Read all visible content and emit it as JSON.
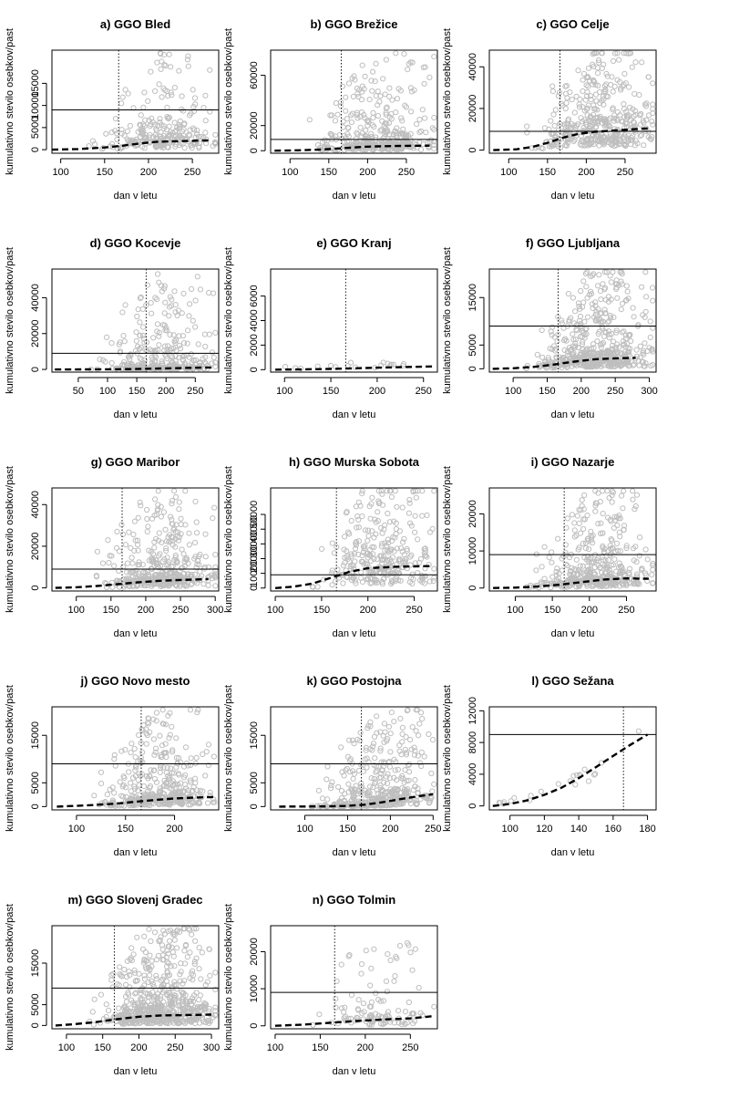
{
  "chart_data": [
    {
      "type": "scatter",
      "title": "a) GGO Bled",
      "xlabel": "dan v letu",
      "ylabel": "kumulativno stevilo osebkov/past",
      "xlim": [
        90,
        280
      ],
      "ylim": [
        -800,
        22500
      ],
      "xticks": [
        100,
        150,
        200,
        250
      ],
      "yticks": [
        0,
        5000,
        10000,
        15000
      ],
      "threshold_y": 9000,
      "vline_x": 166,
      "seed": 11,
      "n_points": 260,
      "point_color": "#bebebe",
      "trend": {
        "x": [
          90,
          120,
          150,
          170,
          190,
          210,
          230,
          250,
          270
        ],
        "y": [
          0,
          150,
          500,
          900,
          1400,
          1800,
          1900,
          2000,
          2100
        ]
      }
    },
    {
      "type": "scatter",
      "title": "b) GGO Brežice",
      "xlabel": "dan v letu",
      "ylabel": "kumulativno stevilo osebkov/past",
      "xlim": [
        75,
        290
      ],
      "ylim": [
        -2000,
        80000
      ],
      "xticks": [
        100,
        150,
        200,
        250
      ],
      "yticks": [
        0,
        20000,
        60000
      ],
      "threshold_y": 9000,
      "vline_x": 166,
      "seed": 22,
      "n_points": 380,
      "point_color": "#bebebe",
      "trend": {
        "x": [
          80,
          110,
          140,
          160,
          180,
          200,
          220,
          250,
          280
        ],
        "y": [
          0,
          300,
          900,
          1700,
          2500,
          3200,
          3600,
          3900,
          4000
        ]
      }
    },
    {
      "type": "scatter",
      "title": "c) GGO Celje",
      "xlabel": "dan v letu",
      "ylabel": "kumulativno stevilo osebkov/past",
      "xlim": [
        75,
        290
      ],
      "ylim": [
        -1500,
        48000
      ],
      "xticks": [
        100,
        150,
        200,
        250
      ],
      "yticks": [
        0,
        20000,
        40000
      ],
      "threshold_y": 9000,
      "vline_x": 166,
      "seed": 33,
      "n_points": 420,
      "point_color": "#bebebe",
      "trend": {
        "x": [
          80,
          110,
          130,
          150,
          170,
          190,
          210,
          240,
          280
        ],
        "y": [
          0,
          400,
          1500,
          3500,
          6000,
          7800,
          8800,
          9500,
          10500
        ]
      }
    },
    {
      "type": "scatter",
      "title": "d) GGO Kocevje",
      "xlabel": "dan v letu",
      "ylabel": "kumulativno stevilo osebkov/past",
      "xlim": [
        5,
        290
      ],
      "ylim": [
        -1500,
        56000
      ],
      "xticks": [
        50,
        100,
        150,
        200,
        250
      ],
      "yticks": [
        0,
        20000,
        40000
      ],
      "threshold_y": 9000,
      "vline_x": 166,
      "seed": 44,
      "n_points": 320,
      "point_color": "#bebebe",
      "trend": {
        "x": [
          10,
          60,
          100,
          140,
          170,
          200,
          230,
          260,
          280
        ],
        "y": [
          0,
          50,
          100,
          200,
          400,
          600,
          800,
          1000,
          1100
        ]
      }
    },
    {
      "type": "scatter",
      "title": "e) GGO Kranj",
      "xlabel": "dan v letu",
      "ylabel": "kumulativno stevilo osebkov/past",
      "xlim": [
        85,
        265
      ],
      "ylim": [
        -200,
        8200
      ],
      "xticks": [
        100,
        150,
        200,
        250
      ],
      "yticks": [
        0,
        2000,
        4000,
        6000
      ],
      "threshold_y": null,
      "vline_x": 166,
      "seed": 55,
      "n_points": 18,
      "point_color": "#bebebe",
      "trend": {
        "x": [
          90,
          120,
          150,
          180,
          210,
          240,
          260
        ],
        "y": [
          0,
          20,
          60,
          120,
          180,
          230,
          260
        ]
      }
    },
    {
      "type": "scatter",
      "title": "f) GGO Ljubljana",
      "xlabel": "dan v letu",
      "ylabel": "kumulativno stevilo osebkov/past",
      "xlim": [
        65,
        310
      ],
      "ylim": [
        -700,
        21000
      ],
      "xticks": [
        100,
        150,
        200,
        250,
        300
      ],
      "yticks": [
        0,
        5000,
        15000
      ],
      "threshold_y": 9000,
      "vline_x": 166,
      "seed": 66,
      "n_points": 520,
      "point_color": "#bebebe",
      "trend": {
        "x": [
          70,
          100,
          130,
          160,
          190,
          220,
          250,
          280
        ],
        "y": [
          0,
          100,
          400,
          900,
          1500,
          2000,
          2200,
          2300
        ]
      }
    },
    {
      "type": "scatter",
      "title": "g) GGO Maribor",
      "xlabel": "dan v letu",
      "ylabel": "kumulativno stevilo osebkov/past",
      "xlim": [
        65,
        305
      ],
      "ylim": [
        -1500,
        48000
      ],
      "xticks": [
        100,
        150,
        200,
        250,
        300
      ],
      "yticks": [
        0,
        20000,
        40000
      ],
      "threshold_y": 9000,
      "vline_x": 166,
      "seed": 77,
      "n_points": 400,
      "point_color": "#bebebe",
      "trend": {
        "x": [
          70,
          100,
          130,
          160,
          190,
          220,
          250,
          290
        ],
        "y": [
          0,
          300,
          900,
          1800,
          2700,
          3400,
          3800,
          4200
        ]
      }
    },
    {
      "type": "scatter",
      "title": "h) GGO Murska Sobota",
      "xlabel": "dan v letu",
      "ylabel": "kumulativno stevilo osebkov/past",
      "xlim": [
        95,
        275
      ],
      "ylim": [
        -2000,
        68000
      ],
      "xticks": [
        100,
        150,
        200,
        250
      ],
      "yticks": [
        0,
        10000,
        20000,
        30000,
        40000,
        50000
      ],
      "threshold_y": 9000,
      "vline_x": 166,
      "seed": 88,
      "n_points": 300,
      "point_color": "#bebebe",
      "trend": {
        "x": [
          100,
          120,
          140,
          160,
          180,
          200,
          230,
          270
        ],
        "y": [
          0,
          1000,
          3000,
          7000,
          11000,
          13500,
          14500,
          15000
        ]
      }
    },
    {
      "type": "scatter",
      "title": "i) GGO Nazarje",
      "xlabel": "dan v letu",
      "ylabel": "kumulativno stevilo osebkov/past",
      "xlim": [
        65,
        290
      ],
      "ylim": [
        -800,
        27000
      ],
      "xticks": [
        100,
        150,
        200,
        250
      ],
      "yticks": [
        0,
        10000,
        20000
      ],
      "threshold_y": 9000,
      "vline_x": 166,
      "seed": 99,
      "n_points": 440,
      "point_color": "#bebebe",
      "trend": {
        "x": [
          70,
          100,
          130,
          160,
          190,
          220,
          250,
          280
        ],
        "y": [
          0,
          100,
          400,
          900,
          1600,
          2300,
          2600,
          2500
        ]
      }
    },
    {
      "type": "scatter",
      "title": "j) GGO Novo mesto",
      "xlabel": "dan v letu",
      "ylabel": "kumulativno stevilo osebkov/past",
      "xlim": [
        75,
        245
      ],
      "ylim": [
        -700,
        21000
      ],
      "xticks": [
        100,
        150,
        200
      ],
      "yticks": [
        0,
        5000,
        15000
      ],
      "threshold_y": 9000,
      "vline_x": 166,
      "seed": 111,
      "n_points": 420,
      "point_color": "#bebebe",
      "trend": {
        "x": [
          80,
          110,
          140,
          160,
          180,
          200,
          220,
          240
        ],
        "y": [
          0,
          250,
          600,
          1000,
          1400,
          1700,
          1900,
          2000
        ]
      }
    },
    {
      "type": "scatter",
      "title": "k) GGO Postojna",
      "xlabel": "dan v letu",
      "ylabel": "kumulativno stevilo osebkov/past",
      "xlim": [
        60,
        255
      ],
      "ylim": [
        -700,
        21000
      ],
      "xticks": [
        100,
        150,
        200,
        250
      ],
      "yticks": [
        0,
        5000,
        15000
      ],
      "threshold_y": 9000,
      "vline_x": 166,
      "seed": 122,
      "n_points": 460,
      "point_color": "#bebebe",
      "trend": {
        "x": [
          70,
          120,
          150,
          170,
          190,
          210,
          230,
          250
        ],
        "y": [
          0,
          30,
          150,
          400,
          900,
          1500,
          2100,
          2600
        ]
      }
    },
    {
      "type": "scatter",
      "title": "l) GGO Sežana",
      "xlabel": "dan v letu",
      "ylabel": "kumulativno stevilo osebkov/past",
      "xlim": [
        88,
        185
      ],
      "ylim": [
        -500,
        12500
      ],
      "xticks": [
        100,
        120,
        140,
        160,
        180
      ],
      "yticks": [
        0,
        4000,
        8000,
        12000
      ],
      "threshold_y": 9000,
      "vline_x": 166,
      "seed": 133,
      "n_points": 22,
      "point_color": "#bebebe",
      "trend": {
        "x": [
          90,
          100,
          110,
          120,
          130,
          140,
          150,
          160,
          170,
          180
        ],
        "y": [
          0,
          250,
          700,
          1400,
          2300,
          3500,
          4900,
          6300,
          7700,
          9000
        ]
      }
    },
    {
      "type": "scatter",
      "title": "m) GGO Slovenj Gradec",
      "xlabel": "dan v letu",
      "ylabel": "kumulativno stevilo osebkov/past",
      "xlim": [
        80,
        310
      ],
      "ylim": [
        -800,
        24000
      ],
      "xticks": [
        100,
        150,
        200,
        250,
        300
      ],
      "yticks": [
        0,
        5000,
        15000
      ],
      "threshold_y": 9000,
      "vline_x": 166,
      "seed": 144,
      "n_points": 620,
      "point_color": "#bebebe",
      "trend": {
        "x": [
          85,
          110,
          140,
          170,
          200,
          230,
          260,
          300
        ],
        "y": [
          0,
          300,
          800,
          1500,
          2100,
          2400,
          2500,
          2600
        ]
      }
    },
    {
      "type": "scatter",
      "title": "n) GGO Tolmin",
      "xlabel": "dan v letu",
      "ylabel": "kumulativno stevilo osebkov/past",
      "xlim": [
        95,
        280
      ],
      "ylim": [
        -800,
        27000
      ],
      "xticks": [
        100,
        150,
        200,
        250
      ],
      "yticks": [
        0,
        10000,
        20000
      ],
      "threshold_y": 9000,
      "vline_x": 166,
      "seed": 155,
      "n_points": 110,
      "point_color": "#bebebe",
      "trend": {
        "x": [
          100,
          130,
          160,
          190,
          220,
          250,
          275
        ],
        "y": [
          0,
          300,
          800,
          1300,
          1700,
          2000,
          2600
        ]
      }
    }
  ]
}
